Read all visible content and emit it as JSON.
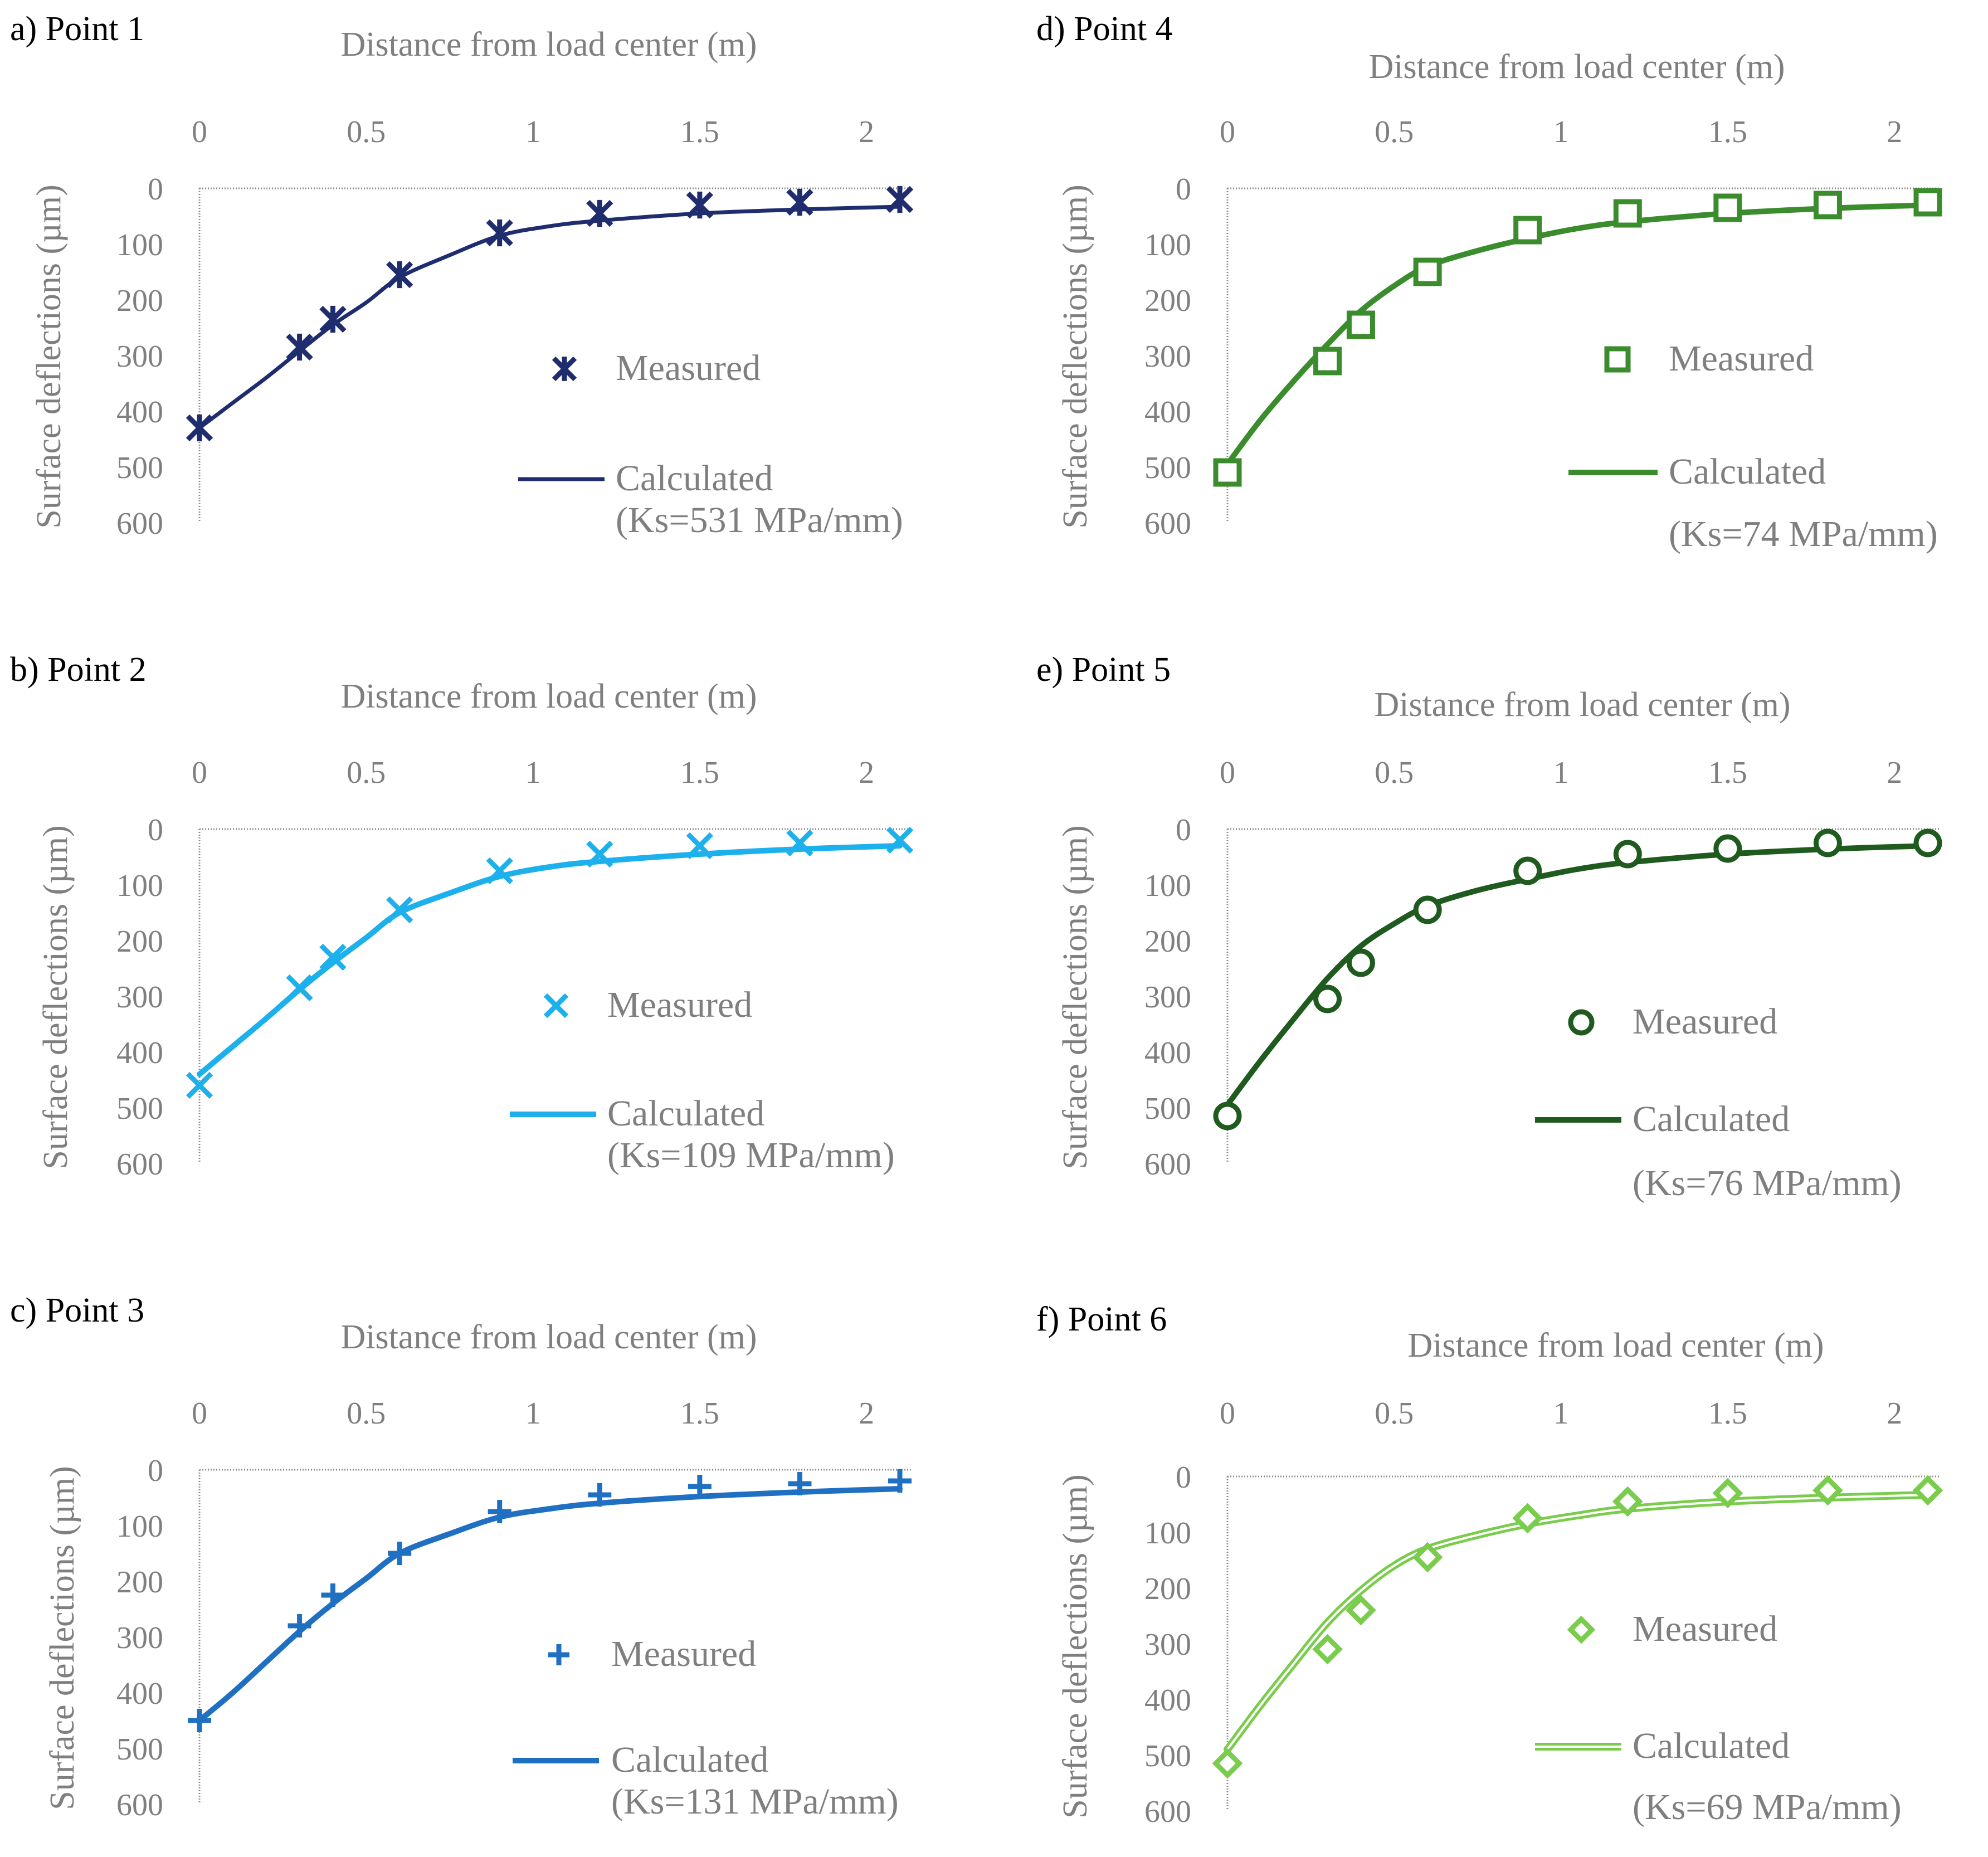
{
  "figure": {
    "charts": [
      {
        "id": "a",
        "panel_label": "a) Point 1",
        "color": "#1f2d6e",
        "marker": "star",
        "line": "solid-thin"
      },
      {
        "id": "b",
        "panel_label": "b) Point 2",
        "color": "#1cb0ec",
        "marker": "x",
        "line": "solid"
      },
      {
        "id": "c",
        "panel_label": "c) Point 3",
        "color": "#1f6fc2",
        "marker": "plus",
        "line": "solid"
      },
      {
        "id": "d",
        "panel_label": "d) Point 4",
        "color": "#3b8c2c",
        "marker": "square",
        "line": "solid"
      },
      {
        "id": "e",
        "panel_label": "e) Point 5",
        "color": "#1f5a1f",
        "marker": "circle",
        "line": "solid"
      },
      {
        "id": "f",
        "panel_label": "f) Point 6",
        "color": "#7acc4c",
        "marker": "diamond",
        "line": "double"
      }
    ]
  },
  "chart_data": [
    {
      "type": "scatter+line",
      "title": "a) Point 1",
      "xlabel": "Distance from load center (m)",
      "ylabel": "Surface deflections (µm)",
      "xlim": [
        0,
        2.1
      ],
      "ylim": [
        0,
        600
      ],
      "y_inverted": true,
      "x_axis_position": "top",
      "xticks": [
        "0",
        "0.5",
        "1",
        "1.5",
        "2"
      ],
      "yticks": [
        "0",
        "100",
        "200",
        "300",
        "400",
        "500",
        "600"
      ],
      "legend": {
        "measured": "Measured",
        "calculated": "Calculated",
        "calculated_note": "(Ks=531 MPa/mm)",
        "placement": "center-right"
      },
      "measured": {
        "x": [
          0,
          0.3,
          0.4,
          0.6,
          0.9,
          1.2,
          1.5,
          1.8,
          2.1
        ],
        "y": [
          430,
          285,
          235,
          155,
          80,
          45,
          30,
          25,
          20
        ]
      },
      "calculated": {
        "x": [
          0,
          0.1,
          0.2,
          0.3,
          0.4,
          0.5,
          0.6,
          0.75,
          0.9,
          1.05,
          1.2,
          1.5,
          1.8,
          2.1
        ],
        "y": [
          430,
          385,
          340,
          292,
          245,
          205,
          160,
          120,
          85,
          68,
          58,
          45,
          38,
          33
        ]
      }
    },
    {
      "type": "scatter+line",
      "title": "b) Point 2",
      "xlabel": "Distance from load center (m)",
      "ylabel": "Surface deflections (µm)",
      "xlim": [
        0,
        2.1
      ],
      "ylim": [
        0,
        600
      ],
      "y_inverted": true,
      "x_axis_position": "top",
      "xticks": [
        "0",
        "0.5",
        "1",
        "1.5",
        "2"
      ],
      "yticks": [
        "0",
        "100",
        "200",
        "300",
        "400",
        "500",
        "600"
      ],
      "legend": {
        "measured": "Measured",
        "calculated": "Calculated",
        "calculated_note": "(Ks=109 MPa/mm)",
        "placement": "center-right"
      },
      "measured": {
        "x": [
          0,
          0.3,
          0.4,
          0.6,
          0.9,
          1.2,
          1.5,
          1.8,
          2.1
        ],
        "y": [
          460,
          285,
          230,
          145,
          75,
          45,
          30,
          25,
          20
        ]
      },
      "calculated": {
        "x": [
          0,
          0.1,
          0.2,
          0.3,
          0.4,
          0.5,
          0.6,
          0.75,
          0.9,
          1.05,
          1.2,
          1.5,
          1.8,
          2.1
        ],
        "y": [
          440,
          390,
          340,
          288,
          240,
          195,
          150,
          115,
          85,
          68,
          58,
          45,
          36,
          30
        ]
      }
    },
    {
      "type": "scatter+line",
      "title": "c) Point 3",
      "xlabel": "Distance from load center (m)",
      "ylabel": "Surface deflections (µm)",
      "xlim": [
        0,
        2.1
      ],
      "ylim": [
        0,
        600
      ],
      "y_inverted": true,
      "x_axis_position": "top",
      "xticks": [
        "0",
        "0.5",
        "1",
        "1.5",
        "2"
      ],
      "yticks": [
        "0",
        "100",
        "200",
        "300",
        "400",
        "500",
        "600"
      ],
      "legend": {
        "measured": "Measured",
        "calculated": "Calculated",
        "calculated_note": "(Ks=131 MPa/mm)",
        "placement": "center-right"
      },
      "measured": {
        "x": [
          0,
          0.3,
          0.4,
          0.6,
          0.9,
          1.2,
          1.5,
          1.8,
          2.1
        ],
        "y": [
          450,
          280,
          225,
          150,
          75,
          45,
          30,
          25,
          20
        ]
      },
      "calculated": {
        "x": [
          0,
          0.1,
          0.2,
          0.3,
          0.4,
          0.5,
          0.6,
          0.75,
          0.9,
          1.05,
          1.2,
          1.5,
          1.8,
          2.1
        ],
        "y": [
          450,
          400,
          345,
          290,
          240,
          195,
          150,
          115,
          85,
          70,
          60,
          48,
          40,
          34
        ]
      }
    },
    {
      "type": "scatter+line",
      "title": "d) Point 4",
      "xlabel": "Distance from load center (m)",
      "ylabel": "Surface deflections (µm)",
      "xlim": [
        0,
        2.1
      ],
      "ylim": [
        0,
        600
      ],
      "y_inverted": true,
      "x_axis_position": "top",
      "xticks": [
        "0",
        "0.5",
        "1",
        "1.5",
        "2"
      ],
      "yticks": [
        "0",
        "100",
        "200",
        "300",
        "400",
        "500",
        "600"
      ],
      "legend": {
        "measured": "Measured",
        "calculated": "Calculated",
        "calculated_note": "(Ks=74 MPa/mm)",
        "placement": "center-right"
      },
      "measured": {
        "x": [
          0,
          0.3,
          0.4,
          0.6,
          0.9,
          1.2,
          1.5,
          1.8,
          2.1
        ],
        "y": [
          510,
          310,
          245,
          150,
          75,
          45,
          35,
          30,
          25
        ]
      },
      "calculated": {
        "x": [
          0,
          0.1,
          0.2,
          0.3,
          0.4,
          0.5,
          0.6,
          0.75,
          0.9,
          1.05,
          1.2,
          1.5,
          1.8,
          2.1
        ],
        "y": [
          495,
          415,
          345,
          280,
          220,
          175,
          140,
          112,
          90,
          72,
          60,
          45,
          36,
          30
        ]
      }
    },
    {
      "type": "scatter+line",
      "title": "e) Point 5",
      "xlabel": "Distance from load center (m)",
      "ylabel": "Surface deflections (µm)",
      "xlim": [
        0,
        2.1
      ],
      "ylim": [
        0,
        600
      ],
      "y_inverted": true,
      "x_axis_position": "top",
      "xticks": [
        "0",
        "0.5",
        "1",
        "1.5",
        "2"
      ],
      "yticks": [
        "0",
        "100",
        "200",
        "300",
        "400",
        "500",
        "600"
      ],
      "legend": {
        "measured": "Measured",
        "calculated": "Calculated",
        "calculated_note": "(Ks=76 MPa/mm)",
        "placement": "center-right"
      },
      "measured": {
        "x": [
          0,
          0.3,
          0.4,
          0.6,
          0.9,
          1.2,
          1.5,
          1.8,
          2.1
        ],
        "y": [
          515,
          305,
          240,
          145,
          75,
          45,
          35,
          25,
          25
        ]
      },
      "calculated": {
        "x": [
          0,
          0.1,
          0.2,
          0.3,
          0.4,
          0.5,
          0.6,
          0.75,
          0.9,
          1.05,
          1.2,
          1.5,
          1.8,
          2.1
        ],
        "y": [
          495,
          415,
          340,
          268,
          210,
          170,
          138,
          110,
          90,
          72,
          60,
          45,
          36,
          30
        ]
      }
    },
    {
      "type": "scatter+line",
      "title": "f) Point 6",
      "xlabel": "Distance from load center (m)",
      "ylabel": "Surface deflections (µm)",
      "xlim": [
        0,
        2.1
      ],
      "ylim": [
        0,
        600
      ],
      "y_inverted": true,
      "x_axis_position": "top",
      "xticks": [
        "0",
        "0.5",
        "1",
        "1.5",
        "2"
      ],
      "yticks": [
        "0",
        "100",
        "200",
        "300",
        "400",
        "500",
        "600"
      ],
      "legend": {
        "measured": "Measured",
        "calculated": "Calculated",
        "calculated_note": "(Ks=69 MPa/mm)",
        "placement": "center-right"
      },
      "measured": {
        "x": [
          0,
          0.3,
          0.4,
          0.6,
          0.9,
          1.2,
          1.5,
          1.8,
          2.1
        ],
        "y": [
          515,
          310,
          240,
          145,
          75,
          45,
          30,
          25,
          25
        ]
      },
      "calculated": {
        "x": [
          0,
          0.1,
          0.2,
          0.3,
          0.4,
          0.5,
          0.6,
          0.75,
          0.9,
          1.05,
          1.2,
          1.5,
          1.8,
          2.1
        ],
        "y": [
          490,
          410,
          335,
          262,
          205,
          160,
          130,
          105,
          85,
          70,
          58,
          45,
          38,
          33
        ]
      }
    }
  ]
}
